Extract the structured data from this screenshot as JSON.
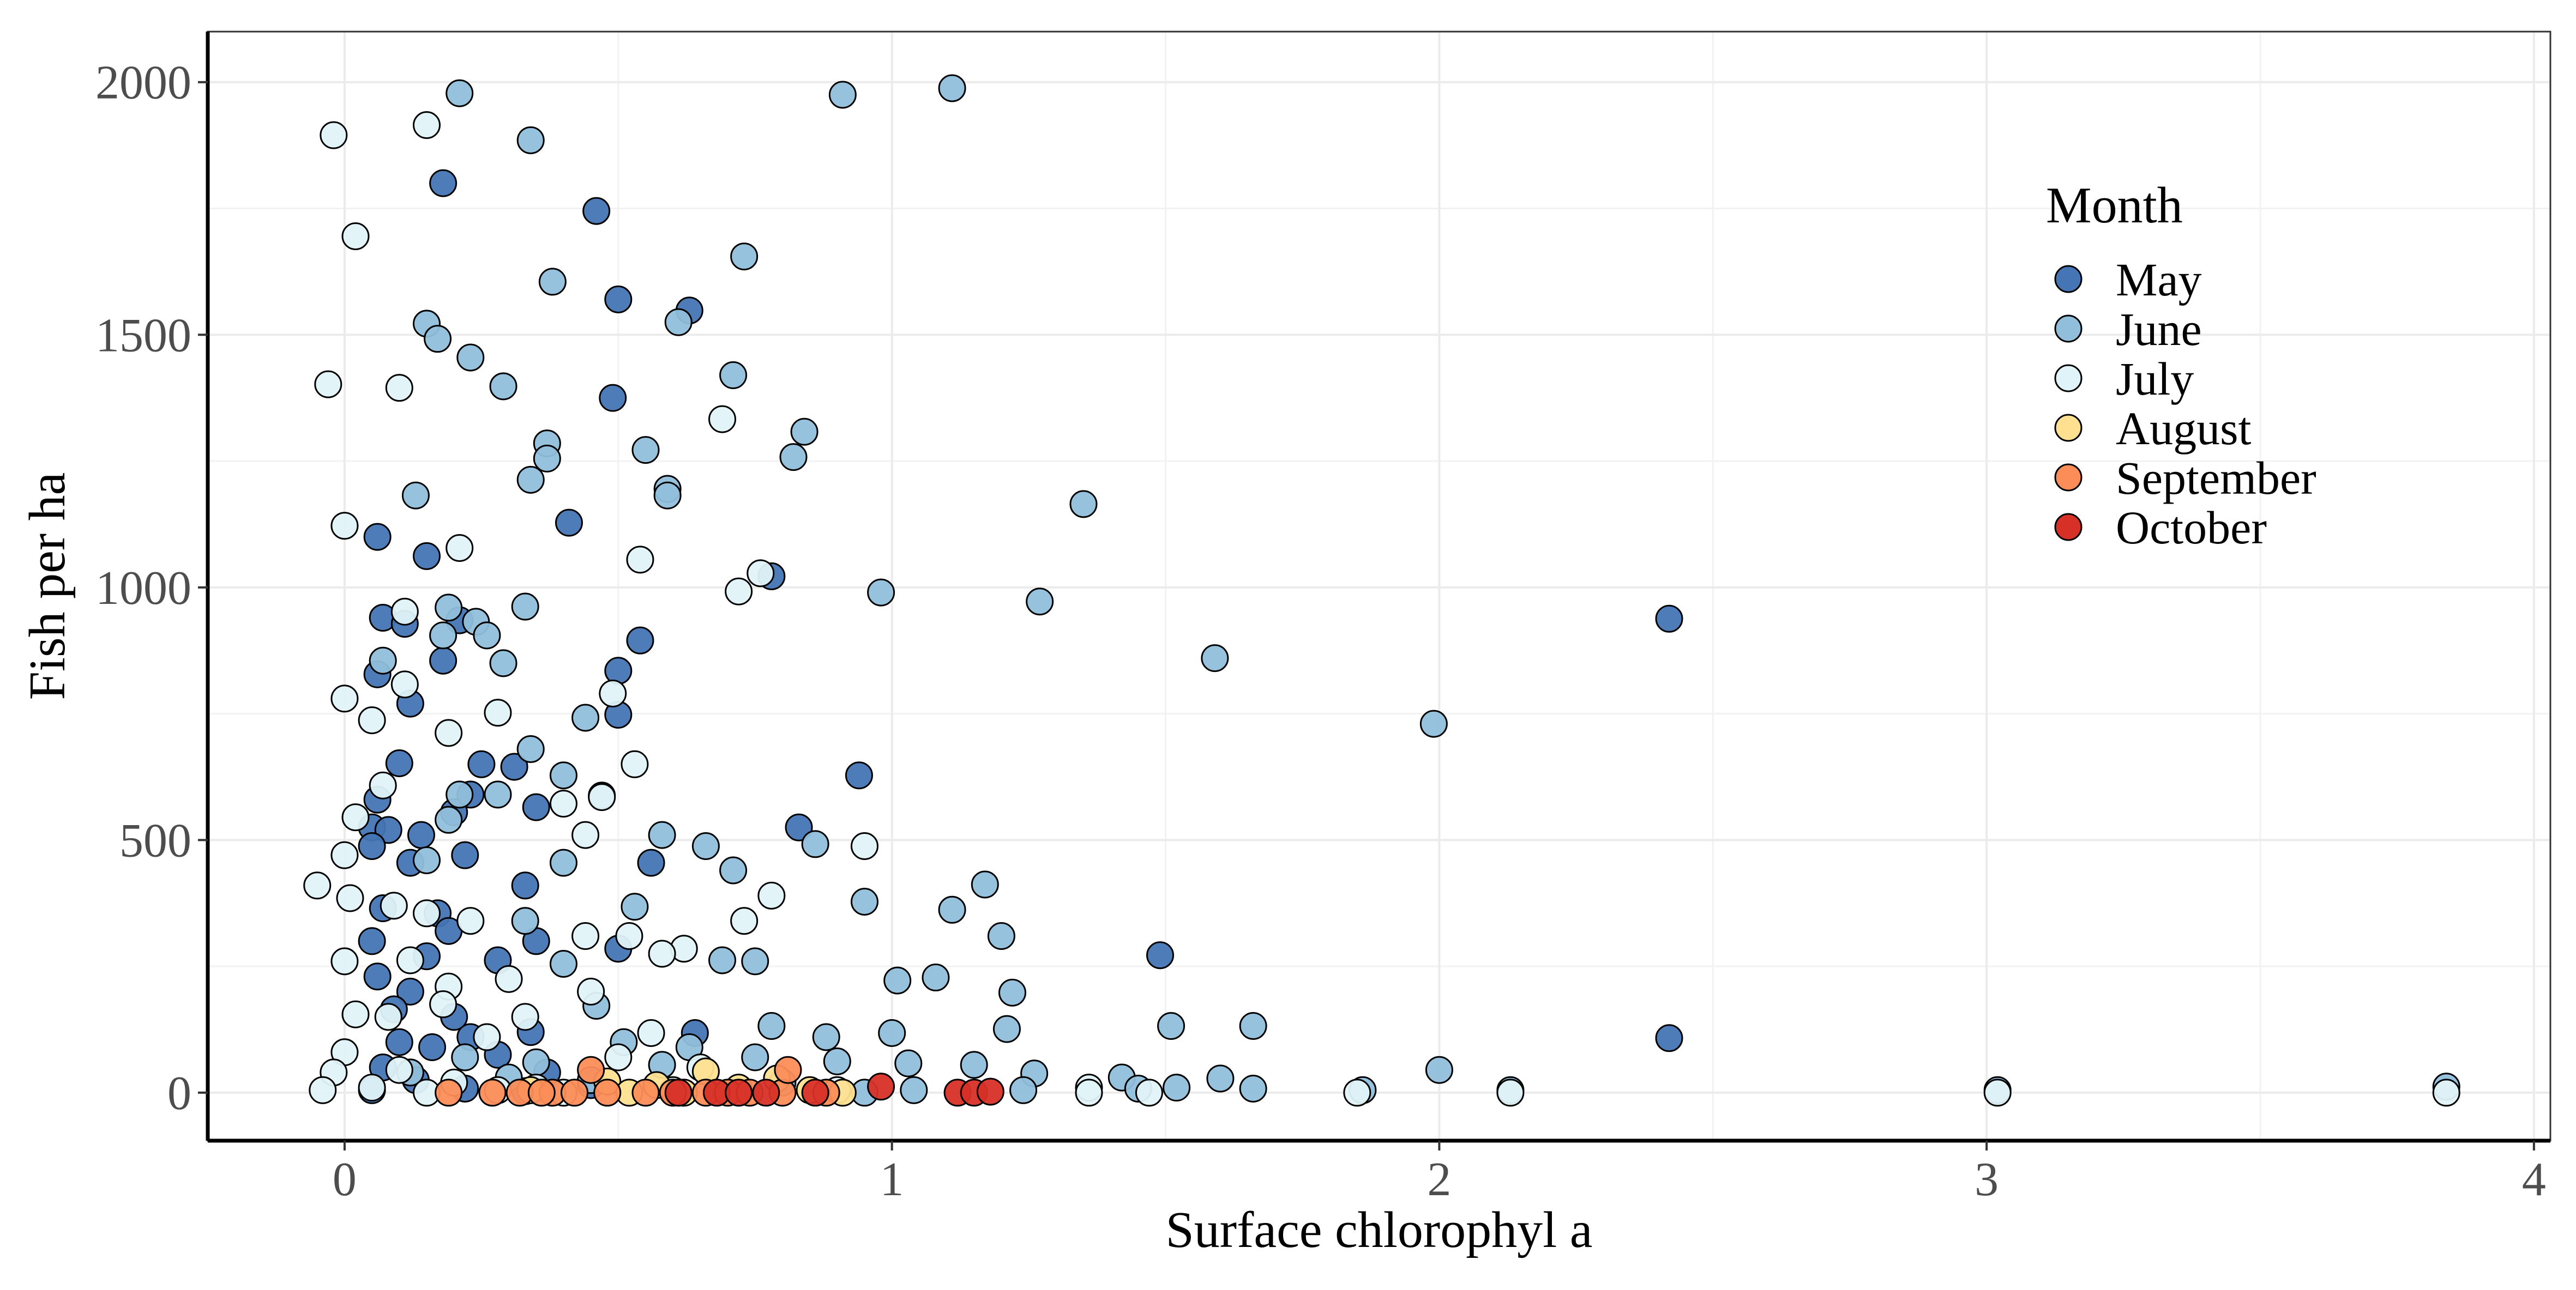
{
  "chart_data": {
    "type": "scatter",
    "title": "",
    "xlabel": "Surface chlorophyl a",
    "ylabel": "Fish per ha",
    "xlim": [
      -0.25,
      4.03
    ],
    "ylim": [
      -95,
      2100
    ],
    "x_ticks": [
      0,
      1,
      2,
      3,
      4
    ],
    "y_ticks": [
      0,
      500,
      1000,
      1500,
      2000
    ],
    "grid": true,
    "legend": {
      "title": "Month",
      "placement": "top-right"
    },
    "series": [
      {
        "name": "May",
        "color": "#4575b4",
        "points": [
          [
            0.18,
            1800
          ],
          [
            0.46,
            1745
          ],
          [
            0.5,
            1570
          ],
          [
            0.63,
            1548
          ],
          [
            0.49,
            1375
          ],
          [
            0.41,
            1128
          ],
          [
            0.06,
            1100
          ],
          [
            0.15,
            1062
          ],
          [
            0.78,
            1022
          ],
          [
            2.42,
            938
          ],
          [
            0.07,
            940
          ],
          [
            0.11,
            928
          ],
          [
            0.21,
            935
          ],
          [
            0.54,
            895
          ],
          [
            0.18,
            855
          ],
          [
            0.06,
            828
          ],
          [
            0.5,
            835
          ],
          [
            0.12,
            770
          ],
          [
            0.5,
            748
          ],
          [
            0.1,
            652
          ],
          [
            0.25,
            650
          ],
          [
            0.31,
            645
          ],
          [
            0.94,
            628
          ],
          [
            0.06,
            580
          ],
          [
            0.2,
            555
          ],
          [
            0.35,
            565
          ],
          [
            0.23,
            590
          ],
          [
            0.05,
            525
          ],
          [
            0.08,
            520
          ],
          [
            0.14,
            510
          ],
          [
            0.83,
            525
          ],
          [
            0.05,
            488
          ],
          [
            0.22,
            470
          ],
          [
            0.12,
            455
          ],
          [
            0.56,
            455
          ],
          [
            0.33,
            410
          ],
          [
            0.07,
            365
          ],
          [
            0.17,
            355
          ],
          [
            0.19,
            320
          ],
          [
            0.05,
            300
          ],
          [
            0.15,
            270
          ],
          [
            0.35,
            300
          ],
          [
            0.28,
            262
          ],
          [
            0.5,
            285
          ],
          [
            1.49,
            272
          ],
          [
            0.06,
            230
          ],
          [
            0.12,
            200
          ],
          [
            0.09,
            165
          ],
          [
            0.2,
            150
          ],
          [
            0.34,
            120
          ],
          [
            0.64,
            118
          ],
          [
            0.23,
            110
          ],
          [
            2.42,
            108
          ],
          [
            0.1,
            100
          ],
          [
            0.16,
            90
          ],
          [
            0.28,
            75
          ],
          [
            0.07,
            50
          ],
          [
            0.37,
            40
          ],
          [
            0.13,
            25
          ],
          [
            0.45,
            15
          ],
          [
            0.22,
            8
          ],
          [
            0.05,
            5
          ],
          [
            0.33,
            3
          ]
        ]
      },
      {
        "name": "June",
        "color": "#91bfdb",
        "points": [
          [
            0.21,
            1978
          ],
          [
            1.11,
            1988
          ],
          [
            0.91,
            1975
          ],
          [
            0.34,
            1885
          ],
          [
            0.73,
            1655
          ],
          [
            0.38,
            1605
          ],
          [
            0.61,
            1525
          ],
          [
            0.15,
            1522
          ],
          [
            0.17,
            1492
          ],
          [
            0.23,
            1455
          ],
          [
            0.71,
            1420
          ],
          [
            0.29,
            1398
          ],
          [
            0.37,
            1285
          ],
          [
            0.55,
            1272
          ],
          [
            0.84,
            1308
          ],
          [
            0.37,
            1255
          ],
          [
            0.82,
            1258
          ],
          [
            0.34,
            1213
          ],
          [
            0.59,
            1195
          ],
          [
            0.59,
            1182
          ],
          [
            0.13,
            1182
          ],
          [
            1.35,
            1165
          ],
          [
            0.98,
            990
          ],
          [
            1.27,
            972
          ],
          [
            0.33,
            962
          ],
          [
            0.19,
            960
          ],
          [
            0.24,
            932
          ],
          [
            0.26,
            905
          ],
          [
            0.18,
            905
          ],
          [
            1.59,
            860
          ],
          [
            0.29,
            850
          ],
          [
            0.07,
            855
          ],
          [
            1.99,
            730
          ],
          [
            0.44,
            742
          ],
          [
            0.34,
            680
          ],
          [
            0.4,
            628
          ],
          [
            0.21,
            590
          ],
          [
            0.28,
            590
          ],
          [
            0.47,
            588
          ],
          [
            0.19,
            540
          ],
          [
            0.15,
            460
          ],
          [
            0.66,
            488
          ],
          [
            0.86,
            492
          ],
          [
            0.58,
            510
          ],
          [
            0.71,
            440
          ],
          [
            0.4,
            455
          ],
          [
            1.17,
            412
          ],
          [
            0.95,
            378
          ],
          [
            0.53,
            368
          ],
          [
            1.11,
            362
          ],
          [
            0.33,
            340
          ],
          [
            1.2,
            310
          ],
          [
            0.69,
            262
          ],
          [
            0.75,
            260
          ],
          [
            0.4,
            255
          ],
          [
            1.01,
            222
          ],
          [
            1.08,
            228
          ],
          [
            1.22,
            198
          ],
          [
            0.46,
            172
          ],
          [
            0.78,
            132
          ],
          [
            1.21,
            126
          ],
          [
            1.0,
            118
          ],
          [
            1.51,
            132
          ],
          [
            1.66,
            132
          ],
          [
            0.88,
            110
          ],
          [
            0.51,
            100
          ],
          [
            0.63,
            90
          ],
          [
            0.75,
            70
          ],
          [
            0.9,
            62
          ],
          [
            1.03,
            58
          ],
          [
            1.15,
            55
          ],
          [
            1.26,
            38
          ],
          [
            1.42,
            30
          ],
          [
            1.6,
            28
          ],
          [
            2.0,
            45
          ],
          [
            0.58,
            55
          ],
          [
            0.35,
            60
          ],
          [
            0.22,
            70
          ],
          [
            0.3,
            30
          ],
          [
            0.45,
            25
          ],
          [
            0.12,
            40
          ],
          [
            0.8,
            20
          ],
          [
            1.04,
            5
          ],
          [
            1.24,
            5
          ],
          [
            1.45,
            8
          ],
          [
            1.52,
            10
          ],
          [
            1.66,
            8
          ],
          [
            1.86,
            5
          ],
          [
            2.13,
            5
          ],
          [
            3.02,
            5
          ],
          [
            3.84,
            12
          ],
          [
            0.62,
            0
          ],
          [
            0.95,
            0
          ]
        ]
      },
      {
        "name": "July",
        "color": "#e0f3f8",
        "points": [
          [
            -0.02,
            1895
          ],
          [
            0.15,
            1915
          ],
          [
            0.02,
            1695
          ],
          [
            -0.03,
            1402
          ],
          [
            0.1,
            1395
          ],
          [
            0.69,
            1333
          ],
          [
            0.54,
            1055
          ],
          [
            0.21,
            1078
          ],
          [
            0.76,
            1028
          ],
          [
            0.0,
            1122
          ],
          [
            0.72,
            992
          ],
          [
            0.11,
            952
          ],
          [
            0.11,
            808
          ],
          [
            0.49,
            790
          ],
          [
            0.0,
            780
          ],
          [
            0.05,
            737
          ],
          [
            0.28,
            752
          ],
          [
            0.19,
            712
          ],
          [
            0.53,
            650
          ],
          [
            0.07,
            608
          ],
          [
            0.4,
            572
          ],
          [
            0.47,
            585
          ],
          [
            0.44,
            510
          ],
          [
            0.02,
            545
          ],
          [
            0.95,
            488
          ],
          [
            0.0,
            470
          ],
          [
            0.15,
            355
          ],
          [
            0.78,
            390
          ],
          [
            -0.05,
            410
          ],
          [
            0.01,
            385
          ],
          [
            0.52,
            310
          ],
          [
            0.09,
            370
          ],
          [
            0.62,
            285
          ],
          [
            0.44,
            310
          ],
          [
            0.73,
            340
          ],
          [
            0.58,
            275
          ],
          [
            0.0,
            260
          ],
          [
            0.3,
            225
          ],
          [
            0.12,
            262
          ],
          [
            0.19,
            210
          ],
          [
            0.23,
            340
          ],
          [
            0.45,
            200
          ],
          [
            0.33,
            150
          ],
          [
            0.56,
            118
          ],
          [
            0.18,
            175
          ],
          [
            0.02,
            155
          ],
          [
            0.08,
            150
          ],
          [
            0.26,
            110
          ],
          [
            0.5,
            70
          ],
          [
            0.65,
            50
          ],
          [
            0.0,
            80
          ],
          [
            -0.02,
            40
          ],
          [
            0.1,
            45
          ],
          [
            0.2,
            20
          ],
          [
            0.35,
            10
          ],
          [
            0.05,
            10
          ],
          [
            -0.04,
            5
          ],
          [
            0.28,
            5
          ],
          [
            0.6,
            5
          ],
          [
            0.9,
            5
          ],
          [
            1.36,
            10
          ],
          [
            1.36,
            0
          ],
          [
            1.47,
            0
          ],
          [
            1.85,
            0
          ],
          [
            2.13,
            0
          ],
          [
            3.02,
            0
          ],
          [
            3.84,
            0
          ],
          [
            0.15,
            0
          ],
          [
            0.4,
            0
          ]
        ]
      },
      {
        "name": "August",
        "color": "#fee090",
        "points": [
          [
            0.66,
            42
          ],
          [
            0.79,
            28
          ],
          [
            0.91,
            0
          ],
          [
            0.48,
            22
          ],
          [
            0.57,
            15
          ],
          [
            0.72,
            10
          ],
          [
            0.34,
            5
          ],
          [
            0.62,
            0
          ],
          [
            0.52,
            0
          ],
          [
            0.85,
            5
          ]
        ]
      },
      {
        "name": "September",
        "color": "#fc8d59",
        "points": [
          [
            0.19,
            0
          ],
          [
            0.27,
            0
          ],
          [
            0.32,
            0
          ],
          [
            0.38,
            0
          ],
          [
            0.42,
            0
          ],
          [
            0.48,
            0
          ],
          [
            0.45,
            45
          ],
          [
            0.55,
            0
          ],
          [
            0.6,
            0
          ],
          [
            0.66,
            0
          ],
          [
            0.7,
            0
          ],
          [
            0.74,
            0
          ],
          [
            0.8,
            0
          ],
          [
            0.81,
            45
          ],
          [
            0.88,
            0
          ],
          [
            0.36,
            0
          ]
        ]
      },
      {
        "name": "October",
        "color": "#d73027",
        "points": [
          [
            0.61,
            0
          ],
          [
            0.68,
            0
          ],
          [
            0.72,
            0
          ],
          [
            0.77,
            0
          ],
          [
            0.86,
            0
          ],
          [
            0.98,
            12
          ],
          [
            1.12,
            0
          ],
          [
            1.15,
            0
          ],
          [
            1.18,
            2
          ]
        ]
      }
    ]
  }
}
